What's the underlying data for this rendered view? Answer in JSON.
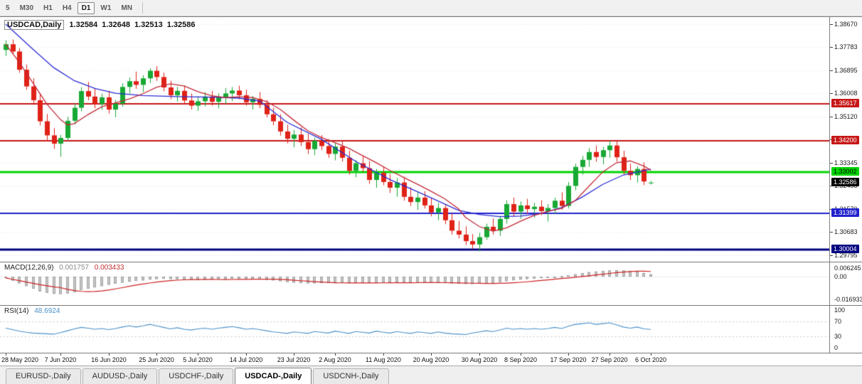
{
  "toolbar": {
    "timeframes": [
      {
        "label": "5",
        "active": false
      },
      {
        "label": "M30",
        "active": false
      },
      {
        "label": "H1",
        "active": false
      },
      {
        "label": "H4",
        "active": false
      },
      {
        "label": "D1",
        "active": true
      },
      {
        "label": "W1",
        "active": false
      },
      {
        "label": "MN",
        "active": false
      }
    ]
  },
  "chart": {
    "symbol_title": "USDCAD,Daily",
    "open": "1.32584",
    "high": "1.32648",
    "low": "1.32513",
    "close": "1.32586"
  },
  "price_axis": {
    "ticks": [
      "1.38670",
      "1.37783",
      "1.36895",
      "1.36008",
      "1.35120",
      "1.34233",
      "1.33345",
      "1.32458",
      "1.31570",
      "1.30683",
      "1.29795"
    ]
  },
  "levels": [
    {
      "label": "1.35617",
      "value": 1.35617,
      "color": "#c61717",
      "text": "#ffffff",
      "line_width": 2
    },
    {
      "label": "1.34200",
      "value": 1.342,
      "color": "#c61717",
      "text": "#ffffff",
      "line_width": 2
    },
    {
      "label": "1.33002",
      "value": 1.33002,
      "color": "#00d400",
      "text": "#000000",
      "line_width": 3
    },
    {
      "label": "1.31399",
      "value": 1.31399,
      "color": "#2121cc",
      "text": "#ffffff",
      "line_width": 2
    },
    {
      "label": "1.30004",
      "value": 1.30004,
      "color": "#000080",
      "text": "#ffffff",
      "line_width": 3
    }
  ],
  "current_price": {
    "label": "1.32586",
    "value": 1.32586,
    "bg": "#000000",
    "text": "#ffffff"
  },
  "macd": {
    "name": "MACD(12,26,9)",
    "value_main": "0.001757",
    "value_signal": "0.003433",
    "axis": [
      {
        "label": "0.006245",
        "value": 0.006245
      },
      {
        "label": "0.00",
        "value": 0
      },
      {
        "label": "-0.016933",
        "value": -0.016933
      }
    ]
  },
  "rsi": {
    "name": "RSI(14)",
    "value": "48.6924",
    "axis": [
      {
        "label": "100",
        "value": 100
      },
      {
        "label": "70",
        "value": 70
      },
      {
        "label": "30",
        "value": 30
      },
      {
        "label": "0",
        "value": 0
      }
    ]
  },
  "time_axis": [
    {
      "index": 0,
      "label": "28 May 2020"
    },
    {
      "index": 8,
      "label": "7 Jun 2020"
    },
    {
      "index": 15,
      "label": "16 Jun 2020"
    },
    {
      "index": 22,
      "label": "25 Jun 2020"
    },
    {
      "index": 28,
      "label": "5 Jul 2020"
    },
    {
      "index": 35,
      "label": "14 Jul 2020"
    },
    {
      "index": 42,
      "label": "23 Jul 2020"
    },
    {
      "index": 48,
      "label": "2 Aug 2020"
    },
    {
      "index": 55,
      "label": "11 Aug 2020"
    },
    {
      "index": 62,
      "label": "20 Aug 2020"
    },
    {
      "index": 69,
      "label": "30 Aug 2020"
    },
    {
      "index": 75,
      "label": "8 Sep 2020"
    },
    {
      "index": 82,
      "label": "17 Sep 2020"
    },
    {
      "index": 88,
      "label": "27 Sep 2020"
    },
    {
      "index": 94,
      "label": "6 Oct 2020"
    }
  ],
  "tabs": [
    {
      "label": "EURUSD-,Daily",
      "active": false
    },
    {
      "label": "AUDUSD-,Daily",
      "active": false
    },
    {
      "label": "USDCHF-,Daily",
      "active": false
    },
    {
      "label": "USDCAD-,Daily",
      "active": true
    },
    {
      "label": "USDCNH-,Daily",
      "active": false
    }
  ],
  "colors": {
    "bull": "#18a834",
    "bear": "#df2217",
    "ma_slow": "#2a2ad4",
    "ma_fast": "#c22836",
    "macd_hist": "#c6c6c6",
    "macd_hist_border": "#a2a2a2",
    "macd_signal": "#cc2020",
    "rsi_line": "#4a90c8",
    "grid": "#e6e6e6"
  },
  "chart_data": {
    "type": "candlestick",
    "symbol": "USDCAD",
    "timeframe": "Daily",
    "ylim": [
      1.29549,
      1.38943
    ],
    "bar_start_x": 8,
    "bar_spacing": 9.65,
    "candles": [
      [
        1.3768,
        1.3805,
        1.3745,
        1.379
      ],
      [
        1.379,
        1.3808,
        1.3752,
        1.3762
      ],
      [
        1.3762,
        1.3775,
        1.368,
        1.3692
      ],
      [
        1.3692,
        1.3712,
        1.3615,
        1.3628
      ],
      [
        1.3628,
        1.366,
        1.3558,
        1.3575
      ],
      [
        1.3575,
        1.3602,
        1.3478,
        1.3494
      ],
      [
        1.3494,
        1.3522,
        1.3418,
        1.344
      ],
      [
        1.344,
        1.3468,
        1.3388,
        1.3408
      ],
      [
        1.3408,
        1.3442,
        1.3358,
        1.343
      ],
      [
        1.343,
        1.3512,
        1.342,
        1.3496
      ],
      [
        1.3496,
        1.3562,
        1.3482,
        1.3546
      ],
      [
        1.3546,
        1.3625,
        1.3532,
        1.361
      ],
      [
        1.361,
        1.3645,
        1.3575,
        1.3589
      ],
      [
        1.3589,
        1.362,
        1.3544,
        1.356
      ],
      [
        1.356,
        1.36,
        1.3538,
        1.3586
      ],
      [
        1.3586,
        1.3611,
        1.3524,
        1.3539
      ],
      [
        1.3539,
        1.3576,
        1.351,
        1.3562
      ],
      [
        1.3562,
        1.364,
        1.355,
        1.3626
      ],
      [
        1.3626,
        1.3662,
        1.3601,
        1.3648
      ],
      [
        1.3648,
        1.3685,
        1.3619,
        1.3634
      ],
      [
        1.3634,
        1.3671,
        1.3606,
        1.3659
      ],
      [
        1.3659,
        1.3698,
        1.3641,
        1.3688
      ],
      [
        1.3688,
        1.3706,
        1.3649,
        1.3664
      ],
      [
        1.3664,
        1.3681,
        1.3609,
        1.3624
      ],
      [
        1.3624,
        1.365,
        1.3579,
        1.3594
      ],
      [
        1.3594,
        1.3626,
        1.357,
        1.3611
      ],
      [
        1.3611,
        1.3631,
        1.3559,
        1.3574
      ],
      [
        1.3574,
        1.3601,
        1.3539,
        1.3554
      ],
      [
        1.3554,
        1.359,
        1.3534,
        1.3571
      ],
      [
        1.3571,
        1.3606,
        1.3551,
        1.3589
      ],
      [
        1.3589,
        1.3611,
        1.3554,
        1.3569
      ],
      [
        1.3569,
        1.3601,
        1.3544,
        1.3586
      ],
      [
        1.3586,
        1.3621,
        1.3561,
        1.3601
      ],
      [
        1.3601,
        1.3626,
        1.3571,
        1.3612
      ],
      [
        1.3612,
        1.3631,
        1.3579,
        1.3594
      ],
      [
        1.3594,
        1.3615,
        1.3554,
        1.3567
      ],
      [
        1.3567,
        1.3591,
        1.3539,
        1.358
      ],
      [
        1.358,
        1.3606,
        1.3544,
        1.3557
      ],
      [
        1.3557,
        1.3576,
        1.3509,
        1.3521
      ],
      [
        1.3521,
        1.3546,
        1.3479,
        1.3494
      ],
      [
        1.3494,
        1.3521,
        1.3439,
        1.3455
      ],
      [
        1.3455,
        1.3481,
        1.3409,
        1.3427
      ],
      [
        1.3427,
        1.3461,
        1.3394,
        1.3443
      ],
      [
        1.3443,
        1.3471,
        1.3399,
        1.3414
      ],
      [
        1.3414,
        1.3446,
        1.3369,
        1.3387
      ],
      [
        1.3387,
        1.3431,
        1.3364,
        1.3419
      ],
      [
        1.3419,
        1.3441,
        1.3384,
        1.3399
      ],
      [
        1.3399,
        1.3426,
        1.3354,
        1.3369
      ],
      [
        1.3369,
        1.3411,
        1.3344,
        1.3397
      ],
      [
        1.3397,
        1.3421,
        1.3339,
        1.3354
      ],
      [
        1.3354,
        1.3381,
        1.3289,
        1.3304
      ],
      [
        1.3304,
        1.3346,
        1.3279,
        1.3333
      ],
      [
        1.3333,
        1.3361,
        1.3299,
        1.3314
      ],
      [
        1.3314,
        1.3341,
        1.3254,
        1.3269
      ],
      [
        1.3269,
        1.3311,
        1.3239,
        1.3296
      ],
      [
        1.3296,
        1.3321,
        1.3249,
        1.3261
      ],
      [
        1.3261,
        1.3291,
        1.3219,
        1.3239
      ],
      [
        1.3239,
        1.3276,
        1.3204,
        1.3259
      ],
      [
        1.3259,
        1.3281,
        1.3189,
        1.3204
      ],
      [
        1.3204,
        1.3241,
        1.3169,
        1.3184
      ],
      [
        1.3184,
        1.3221,
        1.3154,
        1.3201
      ],
      [
        1.3201,
        1.3226,
        1.3159,
        1.3171
      ],
      [
        1.3171,
        1.3201,
        1.3129,
        1.3144
      ],
      [
        1.3144,
        1.3181,
        1.3114,
        1.3161
      ],
      [
        1.3161,
        1.3176,
        1.3099,
        1.3114
      ],
      [
        1.3114,
        1.3141,
        1.3059,
        1.3074
      ],
      [
        1.3074,
        1.3111,
        1.3044,
        1.3059
      ],
      [
        1.3059,
        1.3091,
        1.3019,
        1.3034
      ],
      [
        1.3034,
        1.3061,
        1.3004,
        1.3021
      ],
      [
        1.3021,
        1.3066,
        1.2995,
        1.3049
      ],
      [
        1.3049,
        1.3101,
        1.3039,
        1.3089
      ],
      [
        1.3089,
        1.3121,
        1.3059,
        1.3074
      ],
      [
        1.3074,
        1.3131,
        1.3054,
        1.3119
      ],
      [
        1.3119,
        1.3191,
        1.3101,
        1.3176
      ],
      [
        1.3176,
        1.3201,
        1.3129,
        1.3147
      ],
      [
        1.3147,
        1.3186,
        1.3119,
        1.3171
      ],
      [
        1.3171,
        1.3196,
        1.3139,
        1.3157
      ],
      [
        1.3157,
        1.3181,
        1.3124,
        1.3166
      ],
      [
        1.3166,
        1.3191,
        1.3134,
        1.3149
      ],
      [
        1.3149,
        1.3176,
        1.3109,
        1.3161
      ],
      [
        1.3161,
        1.3201,
        1.3139,
        1.3189
      ],
      [
        1.3189,
        1.3221,
        1.3154,
        1.3169
      ],
      [
        1.3169,
        1.3261,
        1.3159,
        1.3246
      ],
      [
        1.3246,
        1.3331,
        1.3229,
        1.3319
      ],
      [
        1.3319,
        1.3361,
        1.3289,
        1.3346
      ],
      [
        1.3346,
        1.3391,
        1.3319,
        1.3376
      ],
      [
        1.3376,
        1.3401,
        1.3339,
        1.3357
      ],
      [
        1.3357,
        1.3396,
        1.3329,
        1.3383
      ],
      [
        1.3383,
        1.342,
        1.3354,
        1.3401
      ],
      [
        1.3401,
        1.3419,
        1.3339,
        1.3356
      ],
      [
        1.3356,
        1.3381,
        1.3289,
        1.3304
      ],
      [
        1.3304,
        1.3331,
        1.3269,
        1.3287
      ],
      [
        1.3287,
        1.3321,
        1.3259,
        1.3311
      ],
      [
        1.3311,
        1.3336,
        1.3249,
        1.3263
      ],
      [
        1.32584,
        1.32648,
        1.32513,
        1.32586
      ]
    ],
    "ma_slow_points": [
      [
        0,
        1.3867
      ],
      [
        4,
        1.377
      ],
      [
        7,
        1.37
      ],
      [
        10,
        1.365
      ],
      [
        13,
        1.362
      ],
      [
        16,
        1.3602
      ],
      [
        20,
        1.3593
      ],
      [
        25,
        1.3589
      ],
      [
        30,
        1.3587
      ],
      [
        34,
        1.3583
      ],
      [
        37,
        1.3572
      ],
      [
        41,
        1.349
      ],
      [
        46,
        1.3425
      ],
      [
        51,
        1.334
      ],
      [
        56,
        1.327
      ],
      [
        61,
        1.3212
      ],
      [
        66,
        1.3152
      ],
      [
        69,
        1.3136
      ],
      [
        72,
        1.3128
      ],
      [
        75,
        1.313
      ],
      [
        78,
        1.314
      ],
      [
        81,
        1.3163
      ],
      [
        84,
        1.3203
      ],
      [
        87,
        1.3252
      ],
      [
        90,
        1.3288
      ],
      [
        94,
        1.331
      ]
    ],
    "ma_fast_points": [
      [
        0,
        1.379
      ],
      [
        2,
        1.372
      ],
      [
        4,
        1.364
      ],
      [
        6,
        1.356
      ],
      [
        8,
        1.35
      ],
      [
        9,
        1.348
      ],
      [
        10,
        1.3485
      ],
      [
        12,
        1.352
      ],
      [
        14,
        1.355
      ],
      [
        16,
        1.3565
      ],
      [
        18,
        1.358
      ],
      [
        20,
        1.36
      ],
      [
        22,
        1.3625
      ],
      [
        24,
        1.3638
      ],
      [
        26,
        1.363
      ],
      [
        28,
        1.3608
      ],
      [
        30,
        1.3592
      ],
      [
        32,
        1.3585
      ],
      [
        34,
        1.3588
      ],
      [
        36,
        1.3585
      ],
      [
        38,
        1.357
      ],
      [
        40,
        1.354
      ],
      [
        42,
        1.3498
      ],
      [
        44,
        1.3458
      ],
      [
        46,
        1.3432
      ],
      [
        48,
        1.3412
      ],
      [
        50,
        1.339
      ],
      [
        52,
        1.3362
      ],
      [
        54,
        1.3335
      ],
      [
        56,
        1.3305
      ],
      [
        58,
        1.3278
      ],
      [
        60,
        1.3252
      ],
      [
        62,
        1.3225
      ],
      [
        64,
        1.3196
      ],
      [
        66,
        1.3158
      ],
      [
        67,
        1.3125
      ],
      [
        69,
        1.309
      ],
      [
        71,
        1.3072
      ],
      [
        73,
        1.3085
      ],
      [
        75,
        1.311
      ],
      [
        77,
        1.3133
      ],
      [
        79,
        1.3148
      ],
      [
        81,
        1.316
      ],
      [
        83,
        1.319
      ],
      [
        85,
        1.3245
      ],
      [
        87,
        1.33
      ],
      [
        89,
        1.3335
      ],
      [
        91,
        1.3342
      ],
      [
        93,
        1.3322
      ],
      [
        94,
        1.3306
      ]
    ],
    "macd_histogram": [
      -0.001,
      -0.003,
      -0.005,
      -0.007,
      -0.009,
      -0.011,
      -0.012,
      -0.0128,
      -0.013,
      -0.0125,
      -0.0115,
      -0.01,
      -0.009,
      -0.008,
      -0.007,
      -0.006,
      -0.0052,
      -0.0045,
      -0.0038,
      -0.0032,
      -0.0028,
      -0.0022,
      -0.0018,
      -0.0016,
      -0.0018,
      -0.002,
      -0.0022,
      -0.0024,
      -0.0025,
      -0.0024,
      -0.0022,
      -0.002,
      -0.0018,
      -0.0016,
      -0.0015,
      -0.0016,
      -0.0018,
      -0.002,
      -0.0024,
      -0.0028,
      -0.0034,
      -0.004,
      -0.0045,
      -0.0048,
      -0.005,
      -0.005,
      -0.0048,
      -0.0047,
      -0.0045,
      -0.0044,
      -0.0046,
      -0.0048,
      -0.0048,
      -0.0047,
      -0.0046,
      -0.0045,
      -0.0044,
      -0.0043,
      -0.0043,
      -0.0044,
      -0.0044,
      -0.0045,
      -0.0046,
      -0.0047,
      -0.0048,
      -0.005,
      -0.0052,
      -0.0054,
      -0.0055,
      -0.0053,
      -0.005,
      -0.0046,
      -0.004,
      -0.0033,
      -0.0027,
      -0.0022,
      -0.0018,
      -0.0014,
      -0.001,
      -0.0006,
      -0.0002,
      0.0003,
      0.001,
      0.0018,
      0.0026,
      0.0033,
      0.0038,
      0.0042,
      0.0046,
      0.0048,
      0.0047,
      0.0043,
      0.0036,
      0.0027,
      0.0018
    ],
    "rsi_values": [
      52,
      48,
      44,
      41,
      39,
      38,
      37,
      36,
      40,
      45,
      50,
      54,
      52,
      49,
      51,
      48,
      51,
      55,
      58,
      55,
      58,
      62,
      58,
      54,
      50,
      53,
      49,
      47,
      50,
      52,
      49,
      52,
      54,
      56,
      53,
      49,
      51,
      48,
      45,
      42,
      40,
      38,
      42,
      40,
      38,
      43,
      41,
      39,
      44,
      41,
      38,
      43,
      41,
      39,
      44,
      41,
      39,
      43,
      40,
      38,
      42,
      40,
      38,
      42,
      39,
      37,
      36,
      35,
      39,
      42,
      45,
      43,
      47,
      52,
      49,
      51,
      49,
      51,
      49,
      51,
      54,
      51,
      57,
      62,
      64,
      66,
      62,
      64,
      66,
      61,
      55,
      52,
      55,
      50,
      48.69
    ]
  }
}
